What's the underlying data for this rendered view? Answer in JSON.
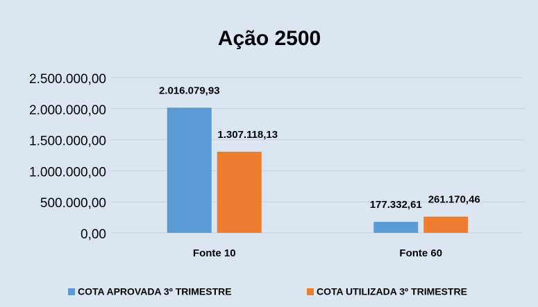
{
  "chart_data": {
    "type": "bar",
    "title": "Ação 2500",
    "categories": [
      "Fonte 10",
      "Fonte 60"
    ],
    "series": [
      {
        "name": "COTA APROVADA 3º TRIMESTRE",
        "color": "#5b9bd5",
        "values": [
          2016079.93,
          177332.61
        ],
        "value_labels": [
          "2.016.079,93",
          "177.332,61"
        ]
      },
      {
        "name": "COTA UTILIZADA 3º TRIMESTRE",
        "color": "#ed7d31",
        "values": [
          1307118.13,
          261170.46
        ],
        "value_labels": [
          "1.307.118,13",
          "261.170,46"
        ]
      }
    ],
    "ylim": [
      0,
      2500000
    ],
    "yticks": [
      {
        "value": 0,
        "label": "0,00"
      },
      {
        "value": 500000,
        "label": "500.000,00"
      },
      {
        "value": 1000000,
        "label": "1.000.000,00"
      },
      {
        "value": 1500000,
        "label": "1.500.000,00"
      },
      {
        "value": 2000000,
        "label": "2.000.000,00"
      },
      {
        "value": 2500000,
        "label": "2.500.000,00"
      }
    ],
    "grid": true,
    "legend": "bottom"
  }
}
